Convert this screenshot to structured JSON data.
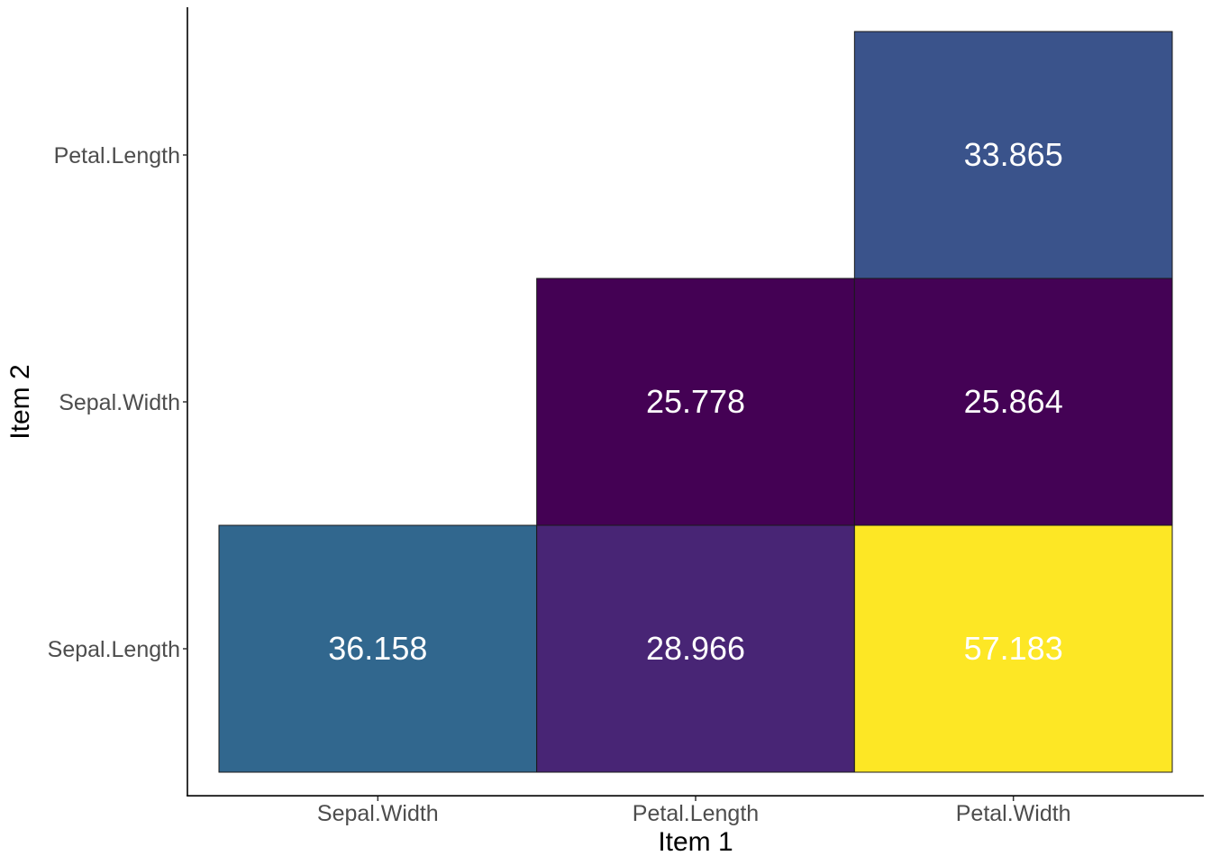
{
  "chart_data": {
    "type": "heatmap",
    "title": "",
    "xlabel": "Item 1",
    "ylabel": "Item 2",
    "x_categories": [
      "Sepal.Width",
      "Petal.Length",
      "Petal.Width"
    ],
    "y_categories": [
      "Sepal.Length",
      "Sepal.Width",
      "Petal.Length"
    ],
    "cells": [
      {
        "x": "Sepal.Width",
        "y": "Sepal.Length",
        "value": 36.158,
        "label": "36.158"
      },
      {
        "x": "Petal.Length",
        "y": "Sepal.Length",
        "value": 28.966,
        "label": "28.966"
      },
      {
        "x": "Petal.Width",
        "y": "Sepal.Length",
        "value": 57.183,
        "label": "57.183"
      },
      {
        "x": "Petal.Length",
        "y": "Sepal.Width",
        "value": 25.778,
        "label": "25.778"
      },
      {
        "x": "Petal.Width",
        "y": "Sepal.Width",
        "value": 25.864,
        "label": "25.864"
      },
      {
        "x": "Petal.Width",
        "y": "Petal.Length",
        "value": 33.865,
        "label": "33.865"
      }
    ],
    "color_scale": "viridis",
    "grid": false,
    "legend": "none"
  }
}
